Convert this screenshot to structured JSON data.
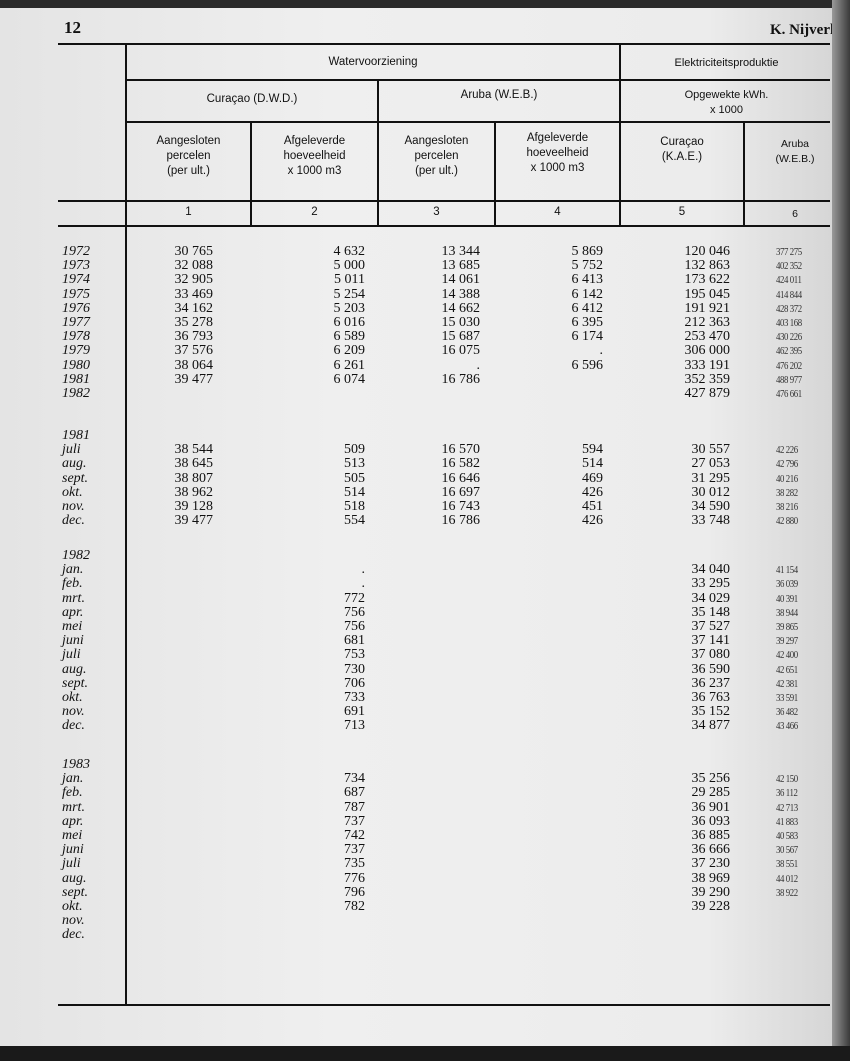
{
  "page_number": "12",
  "running_head": "K. Nijverheid",
  "header": {
    "group_water": "Watervoorziening",
    "group_elec": "Elektriciteitsproduktie",
    "curacao_dwd": "Curaçao (D.W.D.)",
    "aruba_web": "Aruba (W.E.B.)",
    "opgewekte": "Opgewekte kWh.",
    "x1000": "x 1000",
    "col1": [
      "Aangesloten",
      "percelen",
      "(per ult.)"
    ],
    "col2": [
      "Afgeleverde",
      "hoeveelheid",
      "x 1000 m3"
    ],
    "col3": [
      "Aangesloten",
      "percelen",
      "(per ult.)"
    ],
    "col4": [
      "Afgeleverde",
      "hoeveelheid",
      "x 1000 m3"
    ],
    "col5": [
      "Curaçao",
      "(K.A.E.)"
    ],
    "col6": [
      "Aruba",
      "(W.E.B.)"
    ],
    "numbers": [
      "1",
      "2",
      "3",
      "4",
      "5",
      "6"
    ]
  },
  "blocks": [
    {
      "heading": "",
      "rows": [
        {
          "label": "1972",
          "values": [
            "30 765",
            "4 632",
            "13 344",
            "5 869",
            "120 046",
            "377 275"
          ]
        },
        {
          "label": "1973",
          "values": [
            "32 088",
            "5 000",
            "13 685",
            "5 752",
            "132 863",
            "402 352"
          ]
        },
        {
          "label": "1974",
          "values": [
            "32 905",
            "5 011",
            "14 061",
            "6 413",
            "173 622",
            "424 011"
          ]
        },
        {
          "label": "1975",
          "values": [
            "33 469",
            "5 254",
            "14 388",
            "6 142",
            "195 045",
            "414 844"
          ]
        },
        {
          "label": "1976",
          "values": [
            "34 162",
            "5 203",
            "14 662",
            "6 412",
            "191 921",
            "428 372"
          ]
        },
        {
          "label": "1977",
          "values": [
            "35 278",
            "6 016",
            "15 030",
            "6 395",
            "212 363",
            "403 168"
          ]
        },
        {
          "label": "1978",
          "values": [
            "36 793",
            "6 589",
            "15 687",
            "6 174",
            "253 470",
            "430 226"
          ]
        },
        {
          "label": "1979",
          "values": [
            "37 576",
            "6 209",
            "16 075",
            ".",
            "306 000",
            "462 395"
          ]
        },
        {
          "label": "1980",
          "values": [
            "38 064",
            "6 261",
            ".",
            "6 596",
            "333 191",
            "476 202"
          ]
        },
        {
          "label": "1981",
          "values": [
            "39 477",
            "6 074",
            "16 786",
            "",
            "352 359",
            "488 977"
          ]
        },
        {
          "label": "1982",
          "values": [
            "",
            "",
            "",
            "",
            "427 879",
            "476 661"
          ]
        }
      ]
    },
    {
      "heading": "1981",
      "rows": [
        {
          "label": "juli",
          "values": [
            "38 544",
            "509",
            "16 570",
            "594",
            "30 557",
            "42 226"
          ]
        },
        {
          "label": "aug.",
          "values": [
            "38 645",
            "513",
            "16 582",
            "514",
            "27 053",
            "42 796"
          ]
        },
        {
          "label": "sept.",
          "values": [
            "38 807",
            "505",
            "16 646",
            "469",
            "31 295",
            "40 216"
          ]
        },
        {
          "label": "okt.",
          "values": [
            "38 962",
            "514",
            "16 697",
            "426",
            "30 012",
            "38 282"
          ]
        },
        {
          "label": "nov.",
          "values": [
            "39 128",
            "518",
            "16 743",
            "451",
            "34 590",
            "38 216"
          ]
        },
        {
          "label": "dec.",
          "values": [
            "39 477",
            "554",
            "16 786",
            "426",
            "33 748",
            "42 880"
          ]
        }
      ]
    },
    {
      "heading": "1982",
      "rows": [
        {
          "label": "jan.",
          "values": [
            "",
            ".",
            "",
            "",
            "34 040",
            "41 154"
          ]
        },
        {
          "label": "feb.",
          "values": [
            "",
            ".",
            "",
            "",
            "33 295",
            "36 039"
          ]
        },
        {
          "label": "mrt.",
          "values": [
            "",
            "772",
            "",
            "",
            "34 029",
            "40 391"
          ]
        },
        {
          "label": "apr.",
          "values": [
            "",
            "756",
            "",
            "",
            "35 148",
            "38 944"
          ]
        },
        {
          "label": "mei",
          "values": [
            "",
            "756",
            "",
            "",
            "37 527",
            "39 865"
          ]
        },
        {
          "label": "juni",
          "values": [
            "",
            "681",
            "",
            "",
            "37 141",
            "39 297"
          ]
        },
        {
          "label": "juli",
          "values": [
            "",
            "753",
            "",
            "",
            "37 080",
            "42 400"
          ]
        },
        {
          "label": "aug.",
          "values": [
            "",
            "730",
            "",
            "",
            "36 590",
            "42 651"
          ]
        },
        {
          "label": "sept.",
          "values": [
            "",
            "706",
            "",
            "",
            "36 237",
            "42 381"
          ]
        },
        {
          "label": "okt.",
          "values": [
            "",
            "733",
            "",
            "",
            "36 763",
            "33 591"
          ]
        },
        {
          "label": "nov.",
          "values": [
            "",
            "691",
            "",
            "",
            "35 152",
            "36 482"
          ]
        },
        {
          "label": "dec.",
          "values": [
            "",
            "713",
            "",
            "",
            "34 877",
            "43 466"
          ]
        }
      ]
    },
    {
      "heading": "1983",
      "rows": [
        {
          "label": "jan.",
          "values": [
            "",
            "734",
            "",
            "",
            "35 256",
            "42 150"
          ]
        },
        {
          "label": "feb.",
          "values": [
            "",
            "687",
            "",
            "",
            "29 285",
            "36 112"
          ]
        },
        {
          "label": "mrt.",
          "values": [
            "",
            "787",
            "",
            "",
            "36 901",
            "42 713"
          ]
        },
        {
          "label": "apr.",
          "values": [
            "",
            "737",
            "",
            "",
            "36 093",
            "41 883"
          ]
        },
        {
          "label": "mei",
          "values": [
            "",
            "742",
            "",
            "",
            "36 885",
            "40 583"
          ]
        },
        {
          "label": "juni",
          "values": [
            "",
            "737",
            "",
            "",
            "36 666",
            "30 567"
          ]
        },
        {
          "label": "juli",
          "values": [
            "",
            "735",
            "",
            "",
            "37 230",
            "38 551"
          ]
        },
        {
          "label": "aug.",
          "values": [
            "",
            "776",
            "",
            "",
            "38 969",
            "44 012"
          ]
        },
        {
          "label": "sept.",
          "values": [
            "",
            "796",
            "",
            "",
            "39 290",
            "38 922"
          ]
        },
        {
          "label": "okt.",
          "values": [
            "",
            "782",
            "",
            "",
            "39 228",
            ""
          ]
        },
        {
          "label": "nov.",
          "values": [
            "",
            "",
            "",
            "",
            "",
            ""
          ]
        },
        {
          "label": "dec.",
          "values": [
            "",
            "",
            "",
            "",
            "",
            ""
          ]
        }
      ]
    }
  ]
}
